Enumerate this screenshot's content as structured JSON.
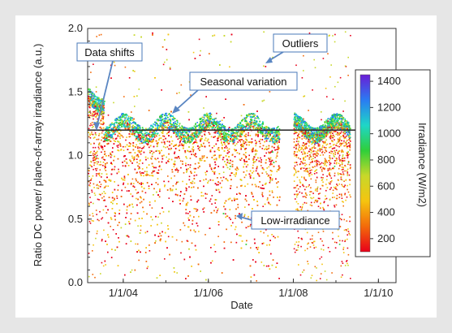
{
  "chart_data": {
    "type": "scatter",
    "xlabel": "Date",
    "ylabel": "Ratio DC power/ plane-of-array irradiance (a.u.)",
    "x_ticks": [
      "1/1/04",
      "1/1/06",
      "1/1/08",
      "1/1/10"
    ],
    "x_range": [
      "2003-03-01",
      "2010-06-01"
    ],
    "ylim": [
      0.0,
      2.0
    ],
    "y_ticks": [
      "0.0",
      "0.5",
      "1.0",
      "1.5",
      "2.0"
    ],
    "grid": false,
    "reference_line": {
      "y": 1.2,
      "color": "#333333"
    },
    "colorbar": {
      "label": "Irradiance (W/m2)",
      "range": [
        100,
        1450
      ],
      "ticks": [
        "200",
        "400",
        "600",
        "800",
        "1000",
        "1200",
        "1400"
      ],
      "colors": [
        "#e8001a",
        "#f36a0a",
        "#f5c40f",
        "#c8d82a",
        "#2fcf3a",
        "#1fd6c7",
        "#2a7bf2",
        "#6a1ed6"
      ]
    },
    "data_segments": [
      {
        "start": "2003-03-01",
        "end": "2003-07-15",
        "median_ratio": 1.45,
        "note": "Data shifts"
      },
      {
        "start": "2003-07-15",
        "end": "2007-09-01",
        "median_ratio": 1.22,
        "note": "Seasonal variation"
      },
      {
        "start": "2007-09-01",
        "end": "2008-01-01",
        "median_ratio": null,
        "note": "gap"
      },
      {
        "start": "2008-01-01",
        "end": "2009-05-01",
        "median_ratio": 1.22,
        "note": ""
      }
    ],
    "annotations": [
      {
        "text": "Data shifts"
      },
      {
        "text": "Outliers"
      },
      {
        "text": "Seasonal variation"
      },
      {
        "text": "Low-irradiance"
      }
    ]
  }
}
